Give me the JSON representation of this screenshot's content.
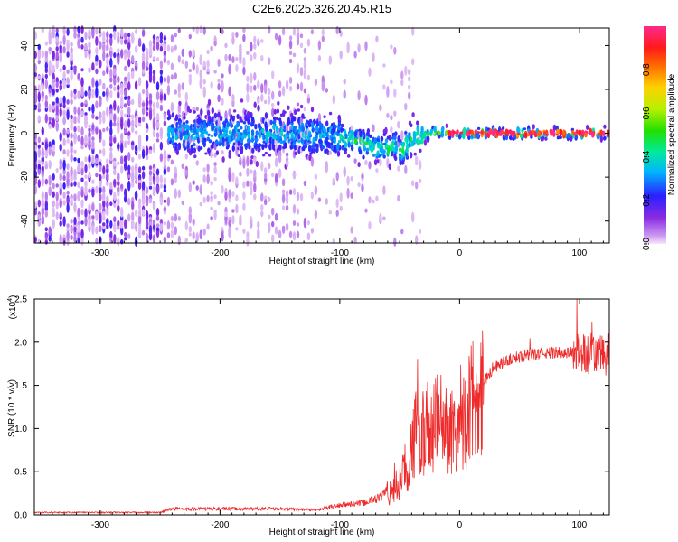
{
  "title": "C2E6.2025.326.20.45.R15",
  "chart_data": [
    {
      "type": "heatmap",
      "name": "spectrogram",
      "xlabel": "Height of straight line (km)",
      "ylabel": "Frequency (Hz)",
      "xlim": [
        -355,
        125
      ],
      "ylim": [
        -50,
        48
      ],
      "xticks": [
        -300,
        -200,
        -100,
        0,
        100
      ],
      "yticks": [
        -40,
        -20,
        0,
        20,
        40
      ],
      "ridge": [
        [
          -245,
          0
        ],
        [
          -200,
          0
        ],
        [
          -150,
          0
        ],
        [
          -110,
          -1
        ],
        [
          -90,
          -3
        ],
        [
          -80,
          -5
        ],
        [
          -70,
          -6
        ],
        [
          -60,
          -8
        ],
        [
          -55,
          -4
        ],
        [
          -50,
          -9
        ],
        [
          -45,
          -5
        ],
        [
          -40,
          -2
        ],
        [
          -35,
          -2
        ],
        [
          -30,
          -1
        ],
        [
          -20,
          1
        ],
        [
          -10,
          0
        ],
        [
          0,
          0
        ],
        [
          125,
          0
        ]
      ],
      "colorbar": {
        "label": "Normalized spectral amplitude",
        "range": [
          0,
          1
        ],
        "ticks": [
          "0.0",
          "0.2",
          "0.4",
          "0.6",
          "0.8"
        ]
      }
    },
    {
      "type": "line",
      "name": "snr",
      "xlabel": "Height of straight line (km)",
      "ylabel": "SNR (10 * v/v)",
      "multiplier_label": "(x10",
      "multiplier_exponent": "4",
      "xlim": [
        -355,
        125
      ],
      "ylim": [
        0,
        2.5
      ],
      "xticks": [
        -300,
        -200,
        -100,
        0,
        100
      ],
      "yticks": [
        "0.0",
        "0.5",
        "1.0",
        "1.5",
        "2.0",
        "2.5"
      ],
      "color": "#ee2a2a",
      "trend": [
        [
          -355,
          0.02
        ],
        [
          -250,
          0.02
        ],
        [
          -240,
          0.05
        ],
        [
          -150,
          0.05
        ],
        [
          -120,
          0.04
        ],
        [
          -100,
          0.08
        ],
        [
          -80,
          0.1
        ],
        [
          -65,
          0.15
        ],
        [
          -55,
          0.3
        ],
        [
          -45,
          0.5
        ],
        [
          -40,
          0.8
        ],
        [
          -35,
          1.0
        ],
        [
          -25,
          0.9
        ],
        [
          -18,
          1.1
        ],
        [
          -10,
          1.0
        ],
        [
          0,
          1.0
        ],
        [
          10,
          1.3
        ],
        [
          20,
          1.55
        ],
        [
          30,
          1.72
        ],
        [
          45,
          1.82
        ],
        [
          60,
          1.86
        ],
        [
          80,
          1.88
        ],
        [
          95,
          1.88
        ],
        [
          110,
          1.85
        ],
        [
          125,
          1.85
        ]
      ]
    }
  ]
}
